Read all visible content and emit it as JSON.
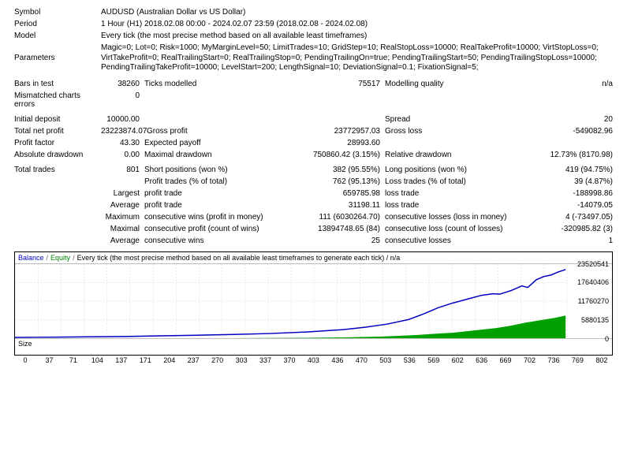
{
  "header": {
    "symbol_label": "Symbol",
    "symbol_value": "AUDUSD (Australian Dollar vs US Dollar)",
    "period_label": "Period",
    "period_value": "1 Hour (H1) 2018.02.08 00:00 - 2024.02.07 23:59 (2018.02.08 - 2024.02.08)",
    "model_label": "Model",
    "model_value": "Every tick (the most precise method based on all available least timeframes)",
    "parameters_label": "Parameters",
    "parameters_value": "Magic=0; Lot=0; Risk=1000; MyMarginLevel=50; LimitTrades=10; GridStep=10; RealStopLoss=10000; RealTakeProfit=10000; VirtStopLoss=0; VirtTakeProfit=0; RealTrailingStart=0; RealTrailingStop=0; PendingTrailingOn=true; PendingTrailingStart=50; PendingTrailingStopLoss=10000; PendingTrailingTakeProfit=10000; LevelStart=200; LengthSignal=10; DeviationSignal=0.1; FixationSignal=5;"
  },
  "stats": {
    "bars_in_test_label": "Bars in test",
    "bars_in_test": "38260",
    "ticks_modelled_label": "Ticks modelled",
    "ticks_modelled": "75517",
    "modelling_quality_label": "Modelling quality",
    "modelling_quality": "n/a",
    "mismatched_label": "Mismatched charts errors",
    "mismatched": "0",
    "initial_deposit_label": "Initial deposit",
    "initial_deposit": "10000.00",
    "spread_label": "Spread",
    "spread": "20",
    "total_net_profit_label": "Total net profit",
    "total_net_profit": "23223874.07",
    "gross_profit_label": "Gross profit",
    "gross_profit": "23772957.03",
    "gross_loss_label": "Gross loss",
    "gross_loss": "-549082.96",
    "profit_factor_label": "Profit factor",
    "profit_factor": "43.30",
    "expected_payoff_label": "Expected payoff",
    "expected_payoff": "28993.60",
    "absolute_drawdown_label": "Absolute drawdown",
    "absolute_drawdown": "0.00",
    "maximal_drawdown_label": "Maximal drawdown",
    "maximal_drawdown": "750860.42 (3.15%)",
    "relative_drawdown_label": "Relative drawdown",
    "relative_drawdown": "12.73% (8170.98)",
    "total_trades_label": "Total trades",
    "total_trades": "801",
    "short_positions_label": "Short positions (won %)",
    "short_positions": "382 (95.55%)",
    "long_positions_label": "Long positions (won %)",
    "long_positions": "419 (94.75%)",
    "profit_trades_label": "Profit trades (% of total)",
    "profit_trades": "762 (95.13%)",
    "loss_trades_label": "Loss trades (% of total)",
    "loss_trades": "39 (4.87%)",
    "largest_label": "Largest",
    "largest_profit_trade_label": "profit trade",
    "largest_profit_trade": "659785.98",
    "largest_loss_trade_label": "loss trade",
    "largest_loss_trade": "-188998.86",
    "average_label": "Average",
    "average_profit_trade_label": "profit trade",
    "average_profit_trade": "31198.11",
    "average_loss_trade_label": "loss trade",
    "average_loss_trade": "-14079.05",
    "maximum_label": "Maximum",
    "max_cons_wins_label": "consecutive wins (profit in money)",
    "max_cons_wins": "111 (6030264.70)",
    "max_cons_losses_label": "consecutive losses (loss in money)",
    "max_cons_losses": "4 (-73497.05)",
    "maximal_label": "Maximal",
    "maximal_cons_profit_label": "consecutive profit (count of wins)",
    "maximal_cons_profit": "13894748.65 (84)",
    "maximal_cons_loss_label": "consecutive loss (count of losses)",
    "maximal_cons_loss": "-320985.82 (3)",
    "avg_label": "Average",
    "avg_cons_wins_label": "consecutive wins",
    "avg_cons_wins": "25",
    "avg_cons_losses_label": "consecutive losses",
    "avg_cons_losses": "1"
  },
  "chart": {
    "balance_label": "Balance",
    "equity_label": "Equity",
    "tick_note": "Every tick (the most precise method based on all available least timeframes to generate each tick) / n/a",
    "size_label": "Size",
    "y_ticks": [
      "23520541",
      "17640406",
      "11760270",
      "5880135",
      "0"
    ],
    "x_ticks": [
      "0",
      "37",
      "71",
      "104",
      "137",
      "171",
      "204",
      "237",
      "270",
      "303",
      "337",
      "370",
      "403",
      "436",
      "470",
      "503",
      "536",
      "569",
      "602",
      "636",
      "669",
      "702",
      "736",
      "769",
      "802"
    ],
    "balance_color": "#0000c0",
    "equity_color": "#008000",
    "equity_fill": "#00a000",
    "grid_color": "#d0d0d0",
    "balance_points": [
      [
        0,
        94
      ],
      [
        30,
        93.8
      ],
      [
        60,
        93.6
      ],
      [
        100,
        93.2
      ],
      [
        150,
        92.8
      ],
      [
        200,
        92
      ],
      [
        250,
        91.2
      ],
      [
        300,
        90.2
      ],
      [
        350,
        89
      ],
      [
        400,
        87
      ],
      [
        450,
        84
      ],
      [
        480,
        81
      ],
      [
        510,
        77
      ],
      [
        540,
        71
      ],
      [
        560,
        64
      ],
      [
        580,
        56
      ],
      [
        600,
        50
      ],
      [
        620,
        45
      ],
      [
        640,
        40
      ],
      [
        655,
        38
      ],
      [
        665,
        38.5
      ],
      [
        680,
        34
      ],
      [
        695,
        28
      ],
      [
        703,
        30
      ],
      [
        715,
        20
      ],
      [
        725,
        16
      ],
      [
        735,
        14
      ],
      [
        745,
        10
      ],
      [
        755,
        7
      ]
    ],
    "equity_area": [
      [
        0,
        95
      ],
      [
        300,
        95
      ],
      [
        400,
        94.5
      ],
      [
        450,
        94
      ],
      [
        500,
        93
      ],
      [
        550,
        91
      ],
      [
        580,
        89
      ],
      [
        600,
        88
      ],
      [
        620,
        86
      ],
      [
        640,
        84
      ],
      [
        660,
        82
      ],
      [
        680,
        79
      ],
      [
        700,
        75
      ],
      [
        720,
        72
      ],
      [
        740,
        69
      ],
      [
        755,
        66
      ],
      [
        755,
        95
      ]
    ]
  }
}
